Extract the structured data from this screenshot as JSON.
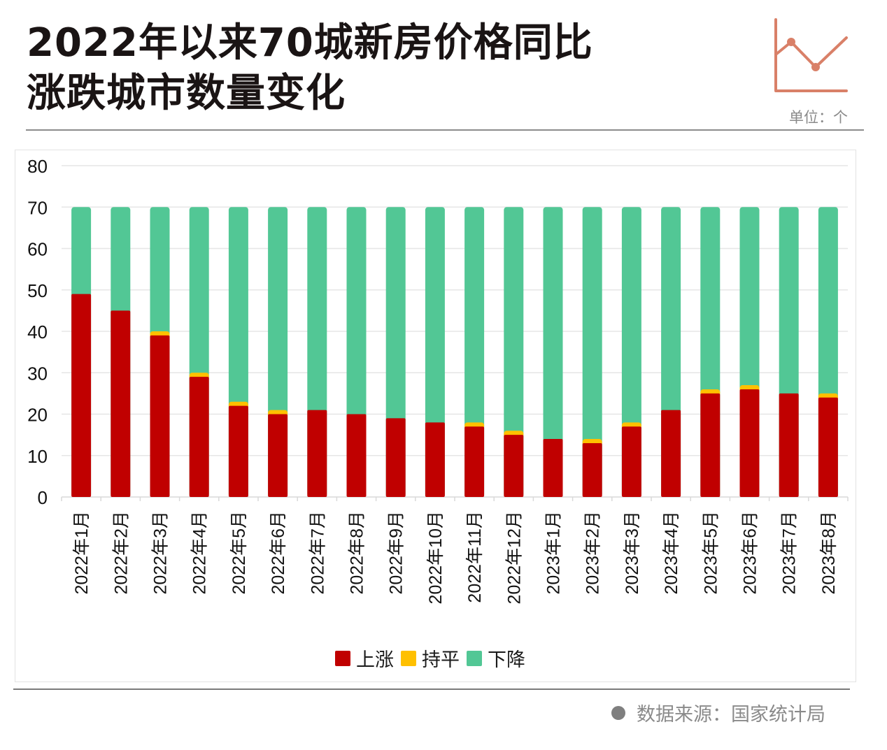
{
  "header": {
    "title_line1": "2022年以来70城新房价格同比",
    "title_line2": "涨跌城市数量变化",
    "unit_label": "单位：个",
    "logo_icon": "line-chart-icon"
  },
  "footer": {
    "source_label": "数据来源：国家统计局"
  },
  "colors": {
    "up": "#c00000",
    "flat": "#ffc000",
    "down": "#52c795",
    "logo": "#d98068",
    "grid": "#e6e6e6"
  },
  "chart_data": {
    "type": "bar",
    "stacked": true,
    "title": "2022年以来70城新房价格同比涨跌城市数量变化",
    "xlabel": "",
    "ylabel": "",
    "ylim": [
      0,
      80
    ],
    "yticks": [
      0,
      10,
      20,
      30,
      40,
      50,
      60,
      70,
      80
    ],
    "grid": true,
    "legend_position": "bottom",
    "categories": [
      "2022年1月",
      "2022年2月",
      "2022年3月",
      "2022年4月",
      "2022年5月",
      "2022年6月",
      "2022年7月",
      "2022年8月",
      "2022年9月",
      "2022年10月",
      "2022年11月",
      "2022年12月",
      "2023年1月",
      "2023年2月",
      "2023年3月",
      "2023年4月",
      "2023年5月",
      "2023年6月",
      "2023年7月",
      "2023年8月"
    ],
    "series": [
      {
        "name": "上涨",
        "color": "#c00000",
        "values": [
          49,
          45,
          39,
          29,
          22,
          20,
          21,
          20,
          19,
          18,
          17,
          15,
          14,
          13,
          17,
          21,
          25,
          26,
          25,
          24
        ]
      },
      {
        "name": "持平",
        "color": "#ffc000",
        "values": [
          0,
          0,
          1,
          1,
          1,
          1,
          0,
          0,
          0,
          0,
          1,
          1,
          0,
          1,
          1,
          0,
          1,
          1,
          0,
          1
        ]
      },
      {
        "name": "下降",
        "color": "#52c795",
        "values": [
          21,
          25,
          30,
          40,
          47,
          49,
          49,
          50,
          51,
          52,
          52,
          54,
          56,
          56,
          52,
          49,
          44,
          43,
          45,
          45
        ]
      }
    ]
  }
}
